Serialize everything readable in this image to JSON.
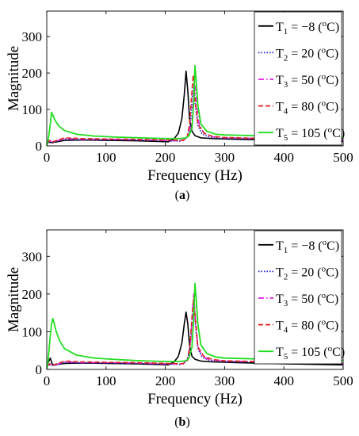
{
  "chart_data": [
    {
      "type": "line",
      "panel_label": "(a)",
      "xlabel": "Frequency (Hz)",
      "ylabel": "Magnitude",
      "xlim": [
        0,
        500
      ],
      "ylim": [
        0,
        370
      ],
      "xticks": [
        0,
        100,
        200,
        300,
        400,
        500
      ],
      "yticks": [
        0,
        100,
        200,
        300
      ],
      "grid": false,
      "legend_position": "top-right",
      "series": [
        {
          "name": "T1 = −8 (oC)",
          "color": "#000000",
          "dash": "solid",
          "x": [
            0,
            4,
            10,
            30,
            60,
            100,
            150,
            190,
            205,
            215,
            222,
            228,
            232,
            235,
            238,
            241,
            245,
            250,
            260,
            280,
            320,
            400,
            500
          ],
          "y": [
            8,
            10,
            9,
            15,
            16,
            15,
            14,
            12,
            11,
            20,
            35,
            75,
            140,
            205,
            150,
            70,
            40,
            28,
            22,
            20,
            18,
            15,
            12
          ]
        },
        {
          "name": "T2 = 20 (oC)",
          "color": "#1f1fd0",
          "dash": "dot",
          "x": [
            0,
            5,
            10,
            30,
            60,
            100,
            150,
            200,
            225,
            235,
            240,
            243,
            246,
            248,
            251,
            255,
            262,
            275,
            300,
            400,
            500
          ],
          "y": [
            8,
            12,
            10,
            18,
            17,
            17,
            16,
            14,
            13,
            20,
            40,
            80,
            145,
            160,
            110,
            55,
            32,
            24,
            21,
            18,
            15
          ]
        },
        {
          "name": "T3 = 50 (oC)",
          "color": "#e020e0",
          "dash": "dashdot",
          "x": [
            0,
            5,
            10,
            30,
            60,
            100,
            150,
            200,
            230,
            240,
            245,
            248,
            250,
            253,
            257,
            265,
            280,
            300,
            400,
            500
          ],
          "y": [
            8,
            14,
            10,
            20,
            18,
            18,
            17,
            15,
            14,
            30,
            70,
            150,
            165,
            120,
            60,
            35,
            25,
            22,
            19,
            16
          ]
        },
        {
          "name": "T4 = 80 (oC)",
          "color": "#e02020",
          "dash": "dash",
          "x": [
            0,
            5,
            10,
            30,
            60,
            100,
            150,
            200,
            230,
            237,
            241,
            244,
            247,
            250,
            255,
            265,
            280,
            300,
            400,
            500
          ],
          "y": [
            8,
            15,
            11,
            22,
            20,
            19,
            18,
            16,
            15,
            25,
            60,
            130,
            195,
            130,
            60,
            35,
            26,
            23,
            19,
            16
          ]
        },
        {
          "name": "T5 = 105 (oC)",
          "color": "#22dd22",
          "dash": "solid",
          "x": [
            0,
            3,
            6,
            8,
            10,
            14,
            20,
            30,
            50,
            80,
            120,
            160,
            200,
            225,
            235,
            240,
            245,
            248,
            250,
            252,
            255,
            260,
            270,
            285,
            300,
            350,
            400,
            450,
            500
          ],
          "y": [
            0,
            22,
            60,
            92,
            85,
            70,
            55,
            42,
            32,
            27,
            24,
            22,
            20,
            20,
            22,
            28,
            50,
            120,
            220,
            180,
            110,
            60,
            40,
            32,
            30,
            28,
            26,
            25,
            24
          ]
        }
      ]
    },
    {
      "type": "line",
      "panel_label": "(b)",
      "xlabel": "Frequency (Hz)",
      "ylabel": "Magnitude",
      "xlim": [
        0,
        500
      ],
      "ylim": [
        0,
        370
      ],
      "xticks": [
        0,
        100,
        200,
        300,
        400,
        500
      ],
      "yticks": [
        0,
        100,
        200,
        300
      ],
      "grid": false,
      "legend_position": "top-right",
      "series": [
        {
          "name": "T1 = −8 (oC)",
          "color": "#000000",
          "dash": "solid",
          "x": [
            0,
            3,
            6,
            9,
            12,
            30,
            60,
            100,
            150,
            190,
            205,
            215,
            222,
            228,
            232,
            235,
            238,
            241,
            245,
            250,
            260,
            280,
            320,
            400,
            500
          ],
          "y": [
            8,
            20,
            30,
            15,
            12,
            16,
            17,
            16,
            15,
            13,
            12,
            20,
            35,
            70,
            120,
            152,
            120,
            60,
            35,
            27,
            22,
            20,
            18,
            15,
            12
          ]
        },
        {
          "name": "T2 = 20 (oC)",
          "color": "#1f1fd0",
          "dash": "dot",
          "x": [
            0,
            5,
            10,
            30,
            60,
            100,
            150,
            200,
            225,
            235,
            240,
            243,
            246,
            248,
            251,
            255,
            262,
            275,
            300,
            400,
            500
          ],
          "y": [
            8,
            12,
            10,
            18,
            17,
            17,
            16,
            14,
            13,
            20,
            40,
            80,
            145,
            170,
            115,
            55,
            32,
            24,
            21,
            18,
            15
          ]
        },
        {
          "name": "T3 = 50 (oC)",
          "color": "#e020e0",
          "dash": "dashdot",
          "x": [
            0,
            5,
            10,
            30,
            60,
            100,
            150,
            200,
            230,
            238,
            243,
            246,
            248,
            251,
            255,
            262,
            275,
            300,
            400,
            500
          ],
          "y": [
            8,
            14,
            10,
            20,
            18,
            18,
            17,
            15,
            14,
            30,
            80,
            160,
            200,
            130,
            60,
            35,
            25,
            22,
            19,
            16
          ]
        },
        {
          "name": "T4 = 80 (oC)",
          "color": "#e02020",
          "dash": "dash",
          "x": [
            0,
            5,
            10,
            30,
            60,
            100,
            150,
            200,
            230,
            238,
            242,
            245,
            248,
            251,
            255,
            265,
            280,
            300,
            400,
            500
          ],
          "y": [
            8,
            15,
            11,
            22,
            20,
            19,
            18,
            16,
            15,
            25,
            70,
            140,
            190,
            130,
            60,
            35,
            26,
            23,
            19,
            16
          ]
        },
        {
          "name": "T5 = 105 (oC)",
          "color": "#22dd22",
          "dash": "solid",
          "x": [
            0,
            2,
            4,
            6,
            8,
            10,
            12,
            16,
            22,
            30,
            50,
            80,
            120,
            160,
            200,
            225,
            235,
            240,
            245,
            248,
            250,
            252,
            255,
            260,
            270,
            285,
            300,
            350,
            400,
            450,
            500
          ],
          "y": [
            0,
            20,
            55,
            90,
            120,
            135,
            125,
            100,
            75,
            55,
            38,
            30,
            26,
            23,
            21,
            21,
            23,
            30,
            60,
            140,
            228,
            190,
            120,
            65,
            42,
            33,
            30,
            28,
            26,
            25,
            24
          ]
        }
      ]
    }
  ],
  "legend_labels": [
    {
      "main": "T",
      "sub": "1",
      "rest": " = −8 (",
      "sup": "o",
      "tail": "C)"
    },
    {
      "main": "T",
      "sub": "2",
      "rest": " = 20 (",
      "sup": "o",
      "tail": "C)"
    },
    {
      "main": "T",
      "sub": "3",
      "rest": " = 50 (",
      "sup": "o",
      "tail": "C)"
    },
    {
      "main": "T",
      "sub": "4",
      "rest": " = 80 (",
      "sup": "o",
      "tail": "C)"
    },
    {
      "main": "T",
      "sub": "5",
      "rest": " = 105 (",
      "sup": "o",
      "tail": "C)"
    }
  ]
}
